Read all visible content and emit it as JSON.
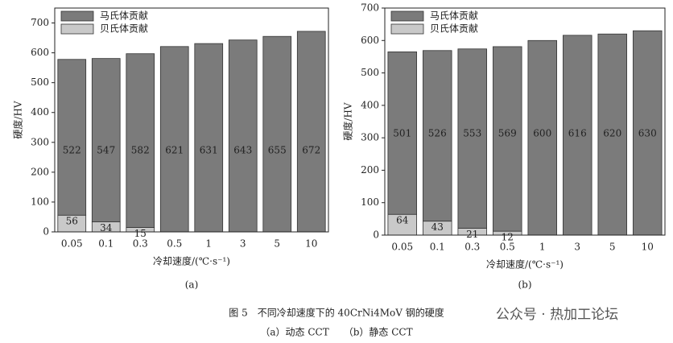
{
  "chart_data": [
    {
      "type": "bar",
      "stacked": true,
      "label": "(a)",
      "xlabel": "冷却速度/(℃·s⁻¹)",
      "ylabel": "硬度/HV",
      "categories": [
        "0.05",
        "0.1",
        "0.3",
        "0.5",
        "1",
        "3",
        "5",
        "10"
      ],
      "series": [
        {
          "name": "马氏体贡献",
          "color": "#7b7b7b",
          "values": [
            522,
            547,
            582,
            621,
            631,
            643,
            655,
            672
          ]
        },
        {
          "name": "贝氏体贡献",
          "color": "#c9c9c9",
          "values": [
            56,
            34,
            15,
            null,
            null,
            null,
            null,
            null
          ]
        }
      ],
      "ylim": [
        0,
        750
      ],
      "yticks": [
        0,
        100,
        200,
        300,
        400,
        500,
        600,
        700
      ],
      "legend": "upper left"
    },
    {
      "type": "bar",
      "stacked": true,
      "label": "(b)",
      "xlabel": "冷却速度/(℃·s⁻¹)",
      "ylabel": "硬度/HV",
      "categories": [
        "0.05",
        "0.1",
        "0.3",
        "0.5",
        "1",
        "3",
        "5",
        "10"
      ],
      "series": [
        {
          "name": "马氏体贡献",
          "color": "#7b7b7b",
          "values": [
            501,
            526,
            553,
            569,
            600,
            616,
            620,
            630
          ]
        },
        {
          "name": "贝氏体贡献",
          "color": "#c9c9c9",
          "values": [
            64,
            43,
            21,
            12,
            null,
            null,
            null,
            null
          ]
        }
      ],
      "ylim": [
        0,
        700
      ],
      "yticks": [
        0,
        100,
        200,
        300,
        400,
        500,
        600,
        700
      ],
      "legend": "upper left"
    }
  ],
  "caption": "图 5　不同冷却速度下的 40CrNi4MoV 钢的硬度",
  "subcaption": "（a）动态 CCT　　（b）静态 CCT",
  "watermark": "公众号 · 热加工论坛"
}
